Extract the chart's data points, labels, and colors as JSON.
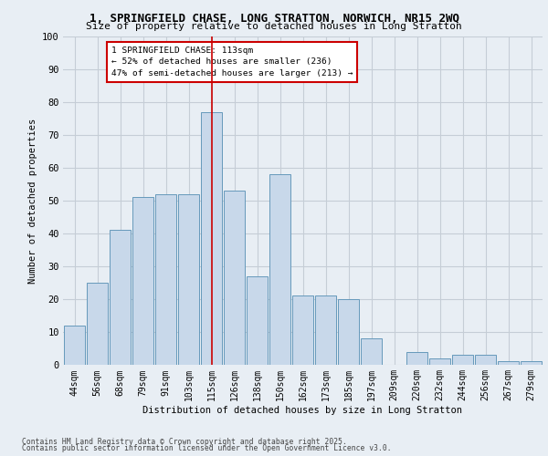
{
  "title_line1": "1, SPRINGFIELD CHASE, LONG STRATTON, NORWICH, NR15 2WQ",
  "title_line2": "Size of property relative to detached houses in Long Stratton",
  "xlabel": "Distribution of detached houses by size in Long Stratton",
  "ylabel": "Number of detached properties",
  "footer_line1": "Contains HM Land Registry data © Crown copyright and database right 2025.",
  "footer_line2": "Contains public sector information licensed under the Open Government Licence v3.0.",
  "annotation_title": "1 SPRINGFIELD CHASE: 113sqm",
  "annotation_line1": "← 52% of detached houses are smaller (236)",
  "annotation_line2": "47% of semi-detached houses are larger (213) →",
  "bar_labels": [
    "44sqm",
    "56sqm",
    "68sqm",
    "79sqm",
    "91sqm",
    "103sqm",
    "115sqm",
    "126sqm",
    "138sqm",
    "150sqm",
    "162sqm",
    "173sqm",
    "185sqm",
    "197sqm",
    "209sqm",
    "220sqm",
    "232sqm",
    "244sqm",
    "256sqm",
    "267sqm",
    "279sqm"
  ],
  "bar_values": [
    12,
    25,
    41,
    51,
    52,
    52,
    77,
    53,
    27,
    58,
    21,
    21,
    20,
    8,
    0,
    4,
    2,
    3,
    3,
    1,
    1
  ],
  "bar_color": "#c8d8ea",
  "bar_edge_color": "#6699bb",
  "bg_color": "#e8eef4",
  "plot_bg_color": "#e8eef4",
  "grid_color": "#c5cdd6",
  "subject_bar_index": 6,
  "ylim": [
    0,
    100
  ],
  "yticks": [
    0,
    10,
    20,
    30,
    40,
    50,
    60,
    70,
    80,
    90,
    100
  ]
}
